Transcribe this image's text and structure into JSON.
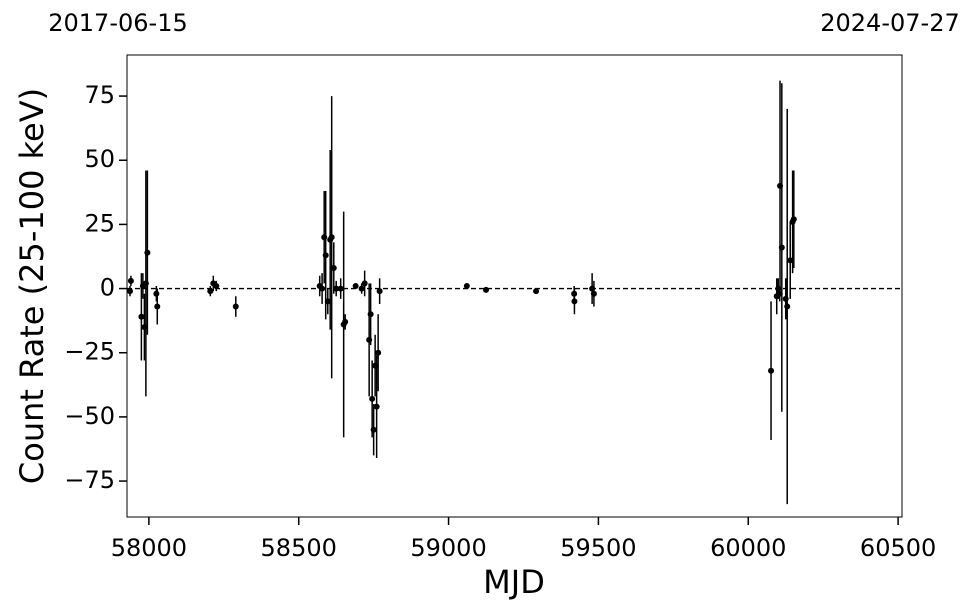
{
  "chart_data": {
    "type": "scatter",
    "xlabel": "MJD",
    "ylabel": "Count Rate (25-100 keV)",
    "date_range": [
      "2017-06-15",
      "2024-07-27"
    ],
    "xlim": [
      57927,
      60513
    ],
    "ylim": [
      -89,
      91
    ],
    "xticks": [
      58000,
      58500,
      59000,
      59500,
      60000,
      60500
    ],
    "yticks": [
      {
        "value": -75,
        "label": "−75"
      },
      {
        "value": -50,
        "label": "−50"
      },
      {
        "value": -25,
        "label": "−25"
      },
      0,
      25,
      50,
      75
    ],
    "reference_line": 0,
    "color": "#000000",
    "x": [
      57937,
      57940,
      57975,
      57980,
      57985,
      57990,
      57995,
      58025,
      58028,
      58205,
      58215,
      58225,
      58290,
      58570,
      58578,
      58585,
      58590,
      58597,
      58605,
      58610,
      58617,
      58625,
      58640,
      58650,
      58655,
      58690,
      58710,
      58720,
      58735,
      58740,
      58745,
      58750,
      58755,
      58760,
      58765,
      58770,
      59061,
      59125,
      59292,
      59419,
      59420,
      59479,
      59485,
      60076,
      60095,
      60100,
      60105,
      60106,
      60112,
      60125,
      60130,
      60140,
      60148,
      60152
    ],
    "values": [
      -1,
      3,
      -11,
      1,
      -15,
      2,
      14,
      -2,
      -7,
      -1,
      2,
      1,
      -7,
      1,
      0,
      20,
      13,
      -5,
      19,
      20,
      8,
      0,
      0,
      -14,
      -13,
      1,
      0,
      2,
      -20,
      -10,
      -43,
      -55,
      -30,
      -46,
      -25,
      -1,
      1,
      -0.5,
      -1,
      -2,
      -5,
      0,
      -2,
      -32,
      -3,
      0,
      -2,
      40,
      16,
      -4,
      -7,
      11,
      26,
      27
    ],
    "errors": [
      2,
      2,
      17,
      5,
      13,
      44,
      32,
      3,
      7,
      2,
      3,
      2,
      4,
      4,
      6,
      18,
      25,
      5,
      35,
      55,
      10,
      3,
      4,
      44,
      3,
      1,
      2,
      5,
      22,
      12,
      15,
      10,
      12,
      20,
      15,
      5,
      1,
      1,
      1,
      3,
      5,
      6,
      5,
      27,
      7,
      4,
      3,
      41,
      64,
      8,
      77,
      15,
      20,
      19
    ]
  }
}
